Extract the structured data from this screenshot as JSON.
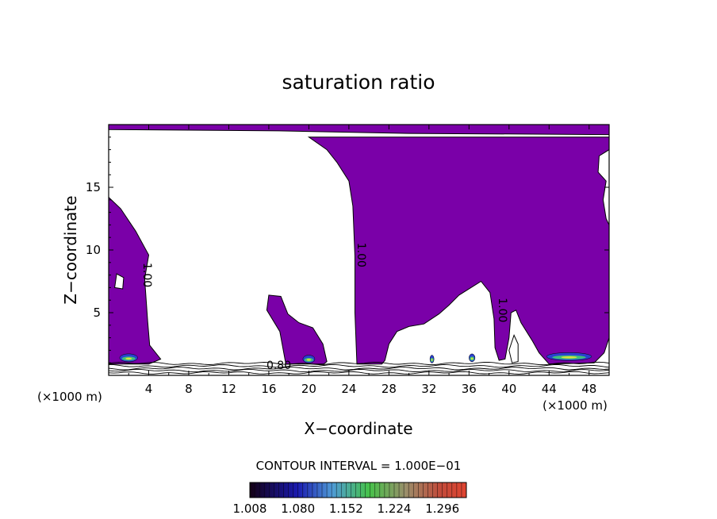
{
  "chart_data": {
    "type": "contour",
    "title": "saturation ratio",
    "xlabel": "X−coordinate",
    "ylabel": "Z−coordinate",
    "x_unit": "(×1000 m)",
    "z_unit": "(×1000 m)",
    "xlim": [
      0,
      50
    ],
    "ylim": [
      0,
      20
    ],
    "x_ticks": [
      4,
      8,
      12,
      16,
      20,
      24,
      28,
      32,
      36,
      40,
      44,
      48
    ],
    "y_ticks": [
      5,
      10,
      15
    ],
    "contour_interval_label": "CONTOUR INTERVAL = 1.000E−01",
    "fill_color": "#7a00a8",
    "colorbar": {
      "min": 1.008,
      "max": 1.332,
      "tick_labels": [
        "1.008",
        "1.080",
        "1.152",
        "1.224",
        "1.296"
      ]
    },
    "contour_labels": [
      {
        "text": "1.00",
        "x": 3.5,
        "z": 8.0,
        "rotate": 90
      },
      {
        "text": "1.00",
        "x": 24.9,
        "z": 9.6,
        "rotate": 90
      },
      {
        "text": "1.00",
        "x": 39.0,
        "z": 5.2,
        "rotate": 90
      },
      {
        "text": "0.80",
        "x": 17.0,
        "z": 0.5,
        "rotate": 0
      }
    ],
    "regions": [
      {
        "name": "supersaturated-top-band",
        "points": [
          [
            0,
            20
          ],
          [
            50,
            20
          ],
          [
            50,
            19.2
          ],
          [
            30,
            19.3
          ],
          [
            17,
            19.5
          ],
          [
            0,
            19.6
          ]
        ]
      },
      {
        "name": "supersaturated-left-column",
        "points": [
          [
            0,
            0.9
          ],
          [
            0,
            14.2
          ],
          [
            1.2,
            13.3
          ],
          [
            2.7,
            11.5
          ],
          [
            4.0,
            9.6
          ],
          [
            3.6,
            7.7
          ],
          [
            3.9,
            4.3
          ],
          [
            4.1,
            2.4
          ],
          [
            5.2,
            1.3
          ],
          [
            4.0,
            0.9
          ]
        ]
      },
      {
        "name": "supersaturated-central-mass",
        "points": [
          [
            24.8,
            0.9
          ],
          [
            24.6,
            5.0
          ],
          [
            24.6,
            9.5
          ],
          [
            24.4,
            13.5
          ],
          [
            24.0,
            15.5
          ],
          [
            22.8,
            17.0
          ],
          [
            21.8,
            18.0
          ],
          [
            20.0,
            19.0
          ],
          [
            50,
            19.0
          ],
          [
            50,
            18.0
          ],
          [
            49.0,
            17.5
          ],
          [
            48.9,
            16.2
          ],
          [
            49.7,
            15.5
          ],
          [
            49.4,
            14.0
          ],
          [
            49.7,
            12.5
          ],
          [
            50,
            12.0
          ],
          [
            50,
            3.0
          ],
          [
            49.5,
            1.8
          ],
          [
            48.5,
            1.0
          ],
          [
            44,
            0.9
          ],
          [
            43.0,
            1.8
          ],
          [
            42.3,
            2.8
          ],
          [
            41.2,
            4.2
          ],
          [
            40.7,
            5.2
          ],
          [
            40.2,
            5.0
          ],
          [
            40.0,
            3.0
          ],
          [
            39.6,
            1.3
          ],
          [
            39.0,
            1.2
          ],
          [
            38.6,
            2.2
          ],
          [
            38.5,
            4.5
          ],
          [
            38.1,
            6.6
          ],
          [
            37.2,
            7.5
          ],
          [
            36.2,
            7.0
          ],
          [
            35.0,
            6.4
          ],
          [
            34.0,
            5.6
          ],
          [
            33.0,
            4.9
          ],
          [
            31.5,
            4.1
          ],
          [
            30.0,
            3.9
          ],
          [
            28.8,
            3.5
          ],
          [
            28.0,
            2.5
          ],
          [
            27.6,
            1.2
          ],
          [
            27.3,
            0.9
          ],
          [
            26.0,
            0.9
          ]
        ]
      },
      {
        "name": "supersaturated-blob-x18",
        "points": [
          [
            17.7,
            0.9
          ],
          [
            17.1,
            3.5
          ],
          [
            15.8,
            5.2
          ],
          [
            16.0,
            6.4
          ],
          [
            17.2,
            6.3
          ],
          [
            17.9,
            4.9
          ],
          [
            19.0,
            4.2
          ],
          [
            20.4,
            3.8
          ],
          [
            21.4,
            2.5
          ],
          [
            21.8,
            1.1
          ],
          [
            21.5,
            0.9
          ]
        ]
      }
    ],
    "clear_regions": [
      {
        "name": "left-pocket",
        "points": [
          [
            0.6,
            7.0
          ],
          [
            1.4,
            6.9
          ],
          [
            1.5,
            7.8
          ],
          [
            0.8,
            8.1
          ]
        ]
      },
      {
        "name": "inner-pocket",
        "points": [
          [
            40.0,
            2.0
          ],
          [
            40.3,
            1.0
          ],
          [
            40.9,
            1.1
          ],
          [
            40.9,
            2.5
          ],
          [
            40.5,
            3.2
          ]
        ]
      }
    ],
    "hotspots": [
      {
        "x": 2.0,
        "z": 1.4,
        "w": 1.8
      },
      {
        "x": 20.0,
        "z": 1.3,
        "w": 1.2
      },
      {
        "x": 46.0,
        "z": 1.5,
        "w": 4.5
      },
      {
        "x": 36.3,
        "z": 1.4,
        "w": 0.6
      },
      {
        "x": 32.3,
        "z": 1.3,
        "w": 0.4
      }
    ]
  }
}
